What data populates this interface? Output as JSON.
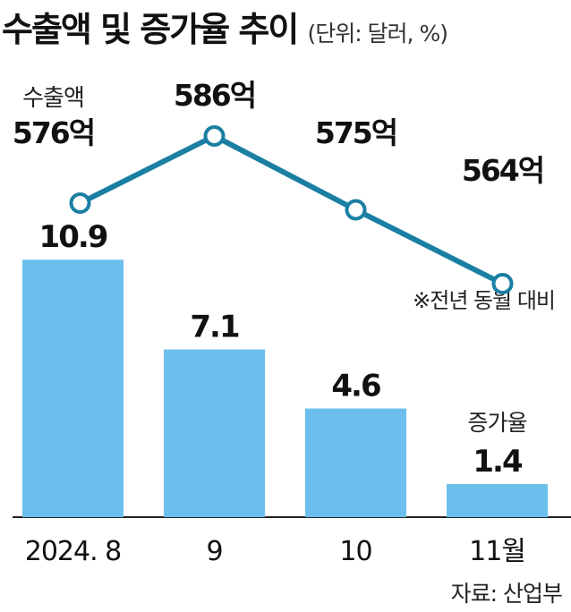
{
  "title": "수출액 및 증가율 추이",
  "unit": "(단위: 달러, %)",
  "source": "자료: 산업부",
  "chart_data": {
    "type": "bar",
    "categories": [
      "2024. 8",
      "9",
      "10",
      "11월"
    ],
    "bar_series": {
      "name": "증가율",
      "values": [
        10.9,
        7.1,
        4.6,
        1.4
      ],
      "labels": [
        "10.9",
        "7.1",
        "4.6",
        "1.4"
      ],
      "color": "#6cbfec"
    },
    "line_series": {
      "name": "수출액",
      "values": [
        576,
        586,
        575,
        564
      ],
      "labels": [
        "576억",
        "586억",
        "575억",
        "564억"
      ],
      "color": "#1a7fa3"
    },
    "note": "※전년 동월 대비"
  }
}
